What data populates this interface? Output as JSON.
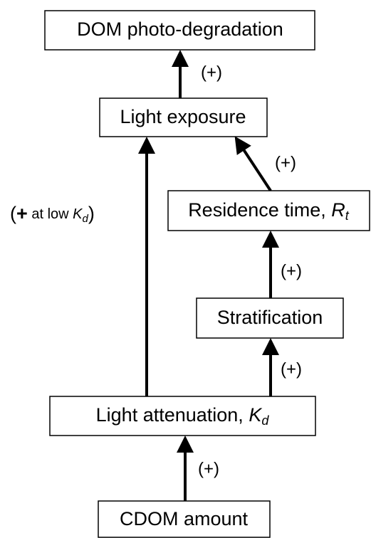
{
  "nodes": [
    {
      "label": "DOM photo-degradation"
    },
    {
      "label": "Light exposure"
    },
    {
      "label": "Residence time, ",
      "var": "R",
      "sub": "t"
    },
    {
      "label": "Stratification"
    },
    {
      "label": "Light attenuation, ",
      "var": "K",
      "sub": "d"
    },
    {
      "label": "CDOM amount"
    }
  ],
  "edges": [
    {
      "label": "(+)"
    },
    {
      "open": "(",
      "sign": "+",
      "text": " at low ",
      "var": "K",
      "sub": "d",
      "close": ")"
    },
    {
      "label": "(+)"
    },
    {
      "label": "(+)"
    },
    {
      "label": "(+)"
    },
    {
      "label": "(+)"
    }
  ]
}
